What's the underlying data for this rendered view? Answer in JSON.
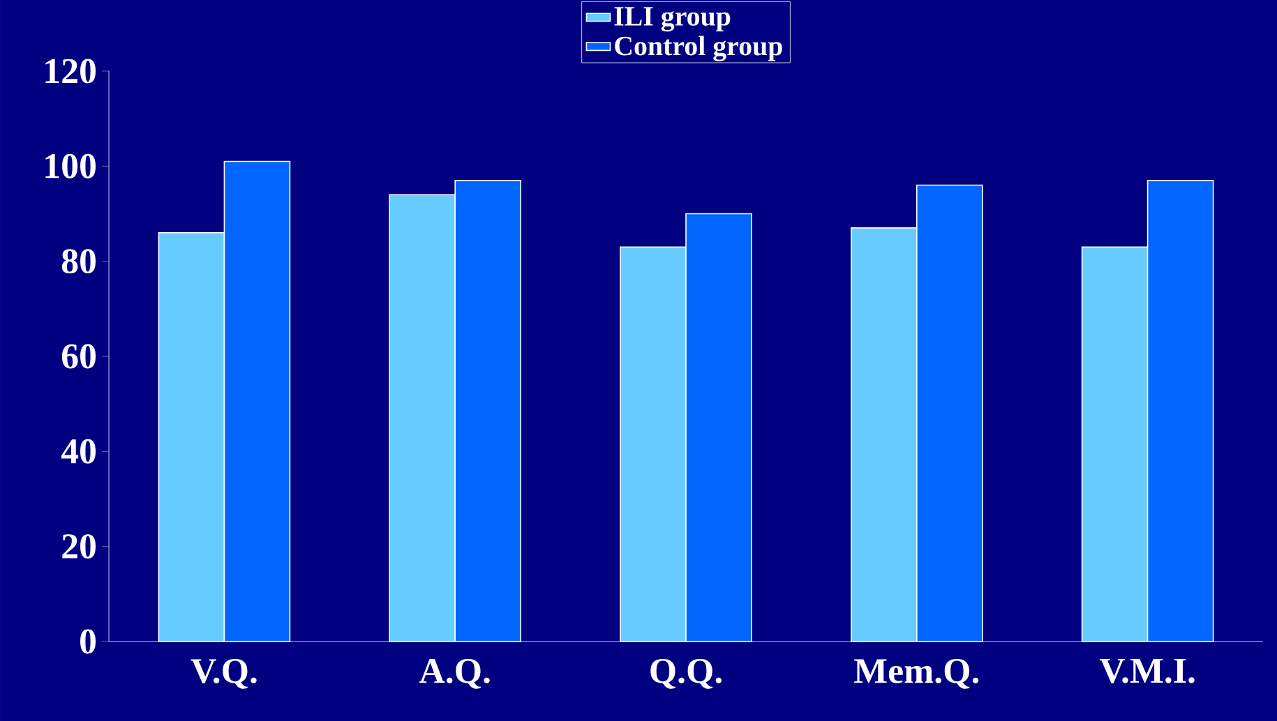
{
  "chart_data": {
    "type": "bar",
    "categories": [
      "V.Q.",
      "A.Q.",
      "Q.Q.",
      "Mem.Q.",
      "V.M.I."
    ],
    "series": [
      {
        "name": "ILI group",
        "color": "#66ccff",
        "values": [
          86,
          94,
          83,
          87,
          83
        ]
      },
      {
        "name": "Control group",
        "color": "#0066ff",
        "values": [
          101,
          97,
          90,
          96,
          97
        ]
      }
    ],
    "ylim": [
      0,
      120
    ],
    "yticks": [
      0,
      20,
      40,
      60,
      80,
      100,
      120
    ],
    "grid": false,
    "legend": "top"
  }
}
